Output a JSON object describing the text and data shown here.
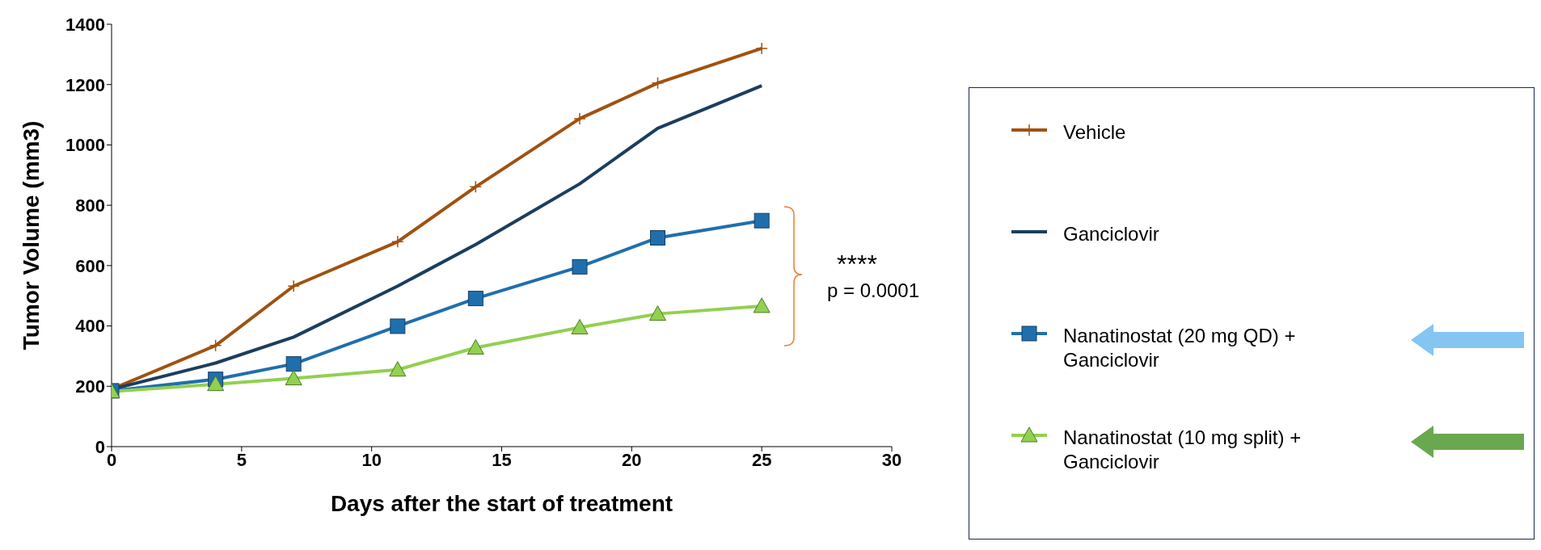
{
  "chart_data": {
    "type": "line",
    "xlabel": "Days after the start of treatment",
    "ylabel": "Tumor Volume (mm3)",
    "x": [
      0,
      4,
      7,
      11,
      14,
      18,
      21,
      25
    ],
    "xlim": [
      0,
      30
    ],
    "xticks": [
      0,
      5,
      10,
      15,
      20,
      25,
      30
    ],
    "ylim": [
      0,
      1400
    ],
    "yticks": [
      0,
      200,
      400,
      600,
      800,
      1000,
      1200,
      1400
    ],
    "grid": false,
    "legend": "right",
    "line_style": "solid",
    "series": [
      {
        "name": "Vehicle",
        "color": "#a0520f",
        "marker": "cross",
        "values": [
          190,
          335,
          532,
          679,
          861,
          1087,
          1205,
          1320
        ]
      },
      {
        "name": "Ganciclovir",
        "color": "#1b3e5e",
        "marker": "none",
        "values": [
          190,
          277,
          363,
          532,
          670,
          871,
          1055,
          1196
        ]
      },
      {
        "name": "Nanatinostat (20 mg QD) + Ganciclovir",
        "color": "#1f6fad",
        "marker": "square",
        "values": [
          185,
          223,
          274,
          399,
          491,
          596,
          692,
          749
        ]
      },
      {
        "name": "Nanatinostat (10 mg split) + Ganciclovir",
        "color": "#92d050",
        "marker": "triangle",
        "values": [
          183,
          207,
          226,
          255,
          328,
          395,
          440,
          466
        ]
      }
    ],
    "annotations": [
      "****",
      "p = 0.0001"
    ]
  }
}
